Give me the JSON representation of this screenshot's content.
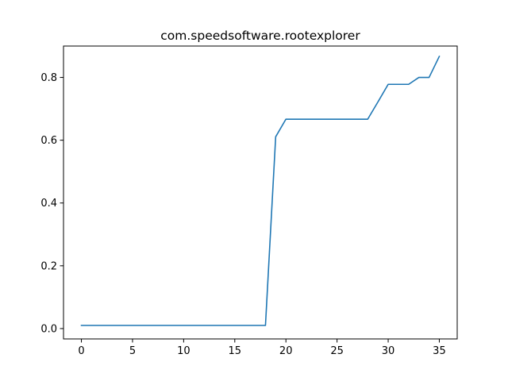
{
  "chart_data": {
    "type": "line",
    "title": "com.speedsoftware.rootexplorer",
    "xlabel": "",
    "ylabel": "",
    "xlim": [
      -1.75,
      36.75
    ],
    "ylim": [
      -0.033,
      0.9
    ],
    "x_ticks": [
      0,
      5,
      10,
      15,
      20,
      25,
      30,
      35
    ],
    "x_tick_labels": [
      "0",
      "5",
      "10",
      "15",
      "20",
      "25",
      "30",
      "35"
    ],
    "y_ticks": [
      0.0,
      0.2,
      0.4,
      0.6,
      0.8
    ],
    "y_tick_labels": [
      "0.0",
      "0.2",
      "0.4",
      "0.6",
      "0.8"
    ],
    "grid": false,
    "series": [
      {
        "color": "#1f77b4",
        "x": [
          0,
          1,
          2,
          3,
          4,
          5,
          6,
          7,
          8,
          9,
          10,
          11,
          12,
          13,
          14,
          15,
          16,
          17,
          18,
          19,
          20,
          21,
          22,
          23,
          24,
          25,
          26,
          27,
          28,
          29,
          30,
          31,
          32,
          33,
          34,
          35
        ],
        "y": [
          0.01,
          0.01,
          0.01,
          0.01,
          0.01,
          0.01,
          0.01,
          0.01,
          0.01,
          0.01,
          0.01,
          0.01,
          0.01,
          0.01,
          0.01,
          0.01,
          0.01,
          0.01,
          0.01,
          0.611,
          0.667,
          0.667,
          0.667,
          0.667,
          0.667,
          0.667,
          0.667,
          0.667,
          0.667,
          0.722,
          0.778,
          0.778,
          0.778,
          0.8,
          0.8,
          0.867
        ]
      }
    ]
  }
}
